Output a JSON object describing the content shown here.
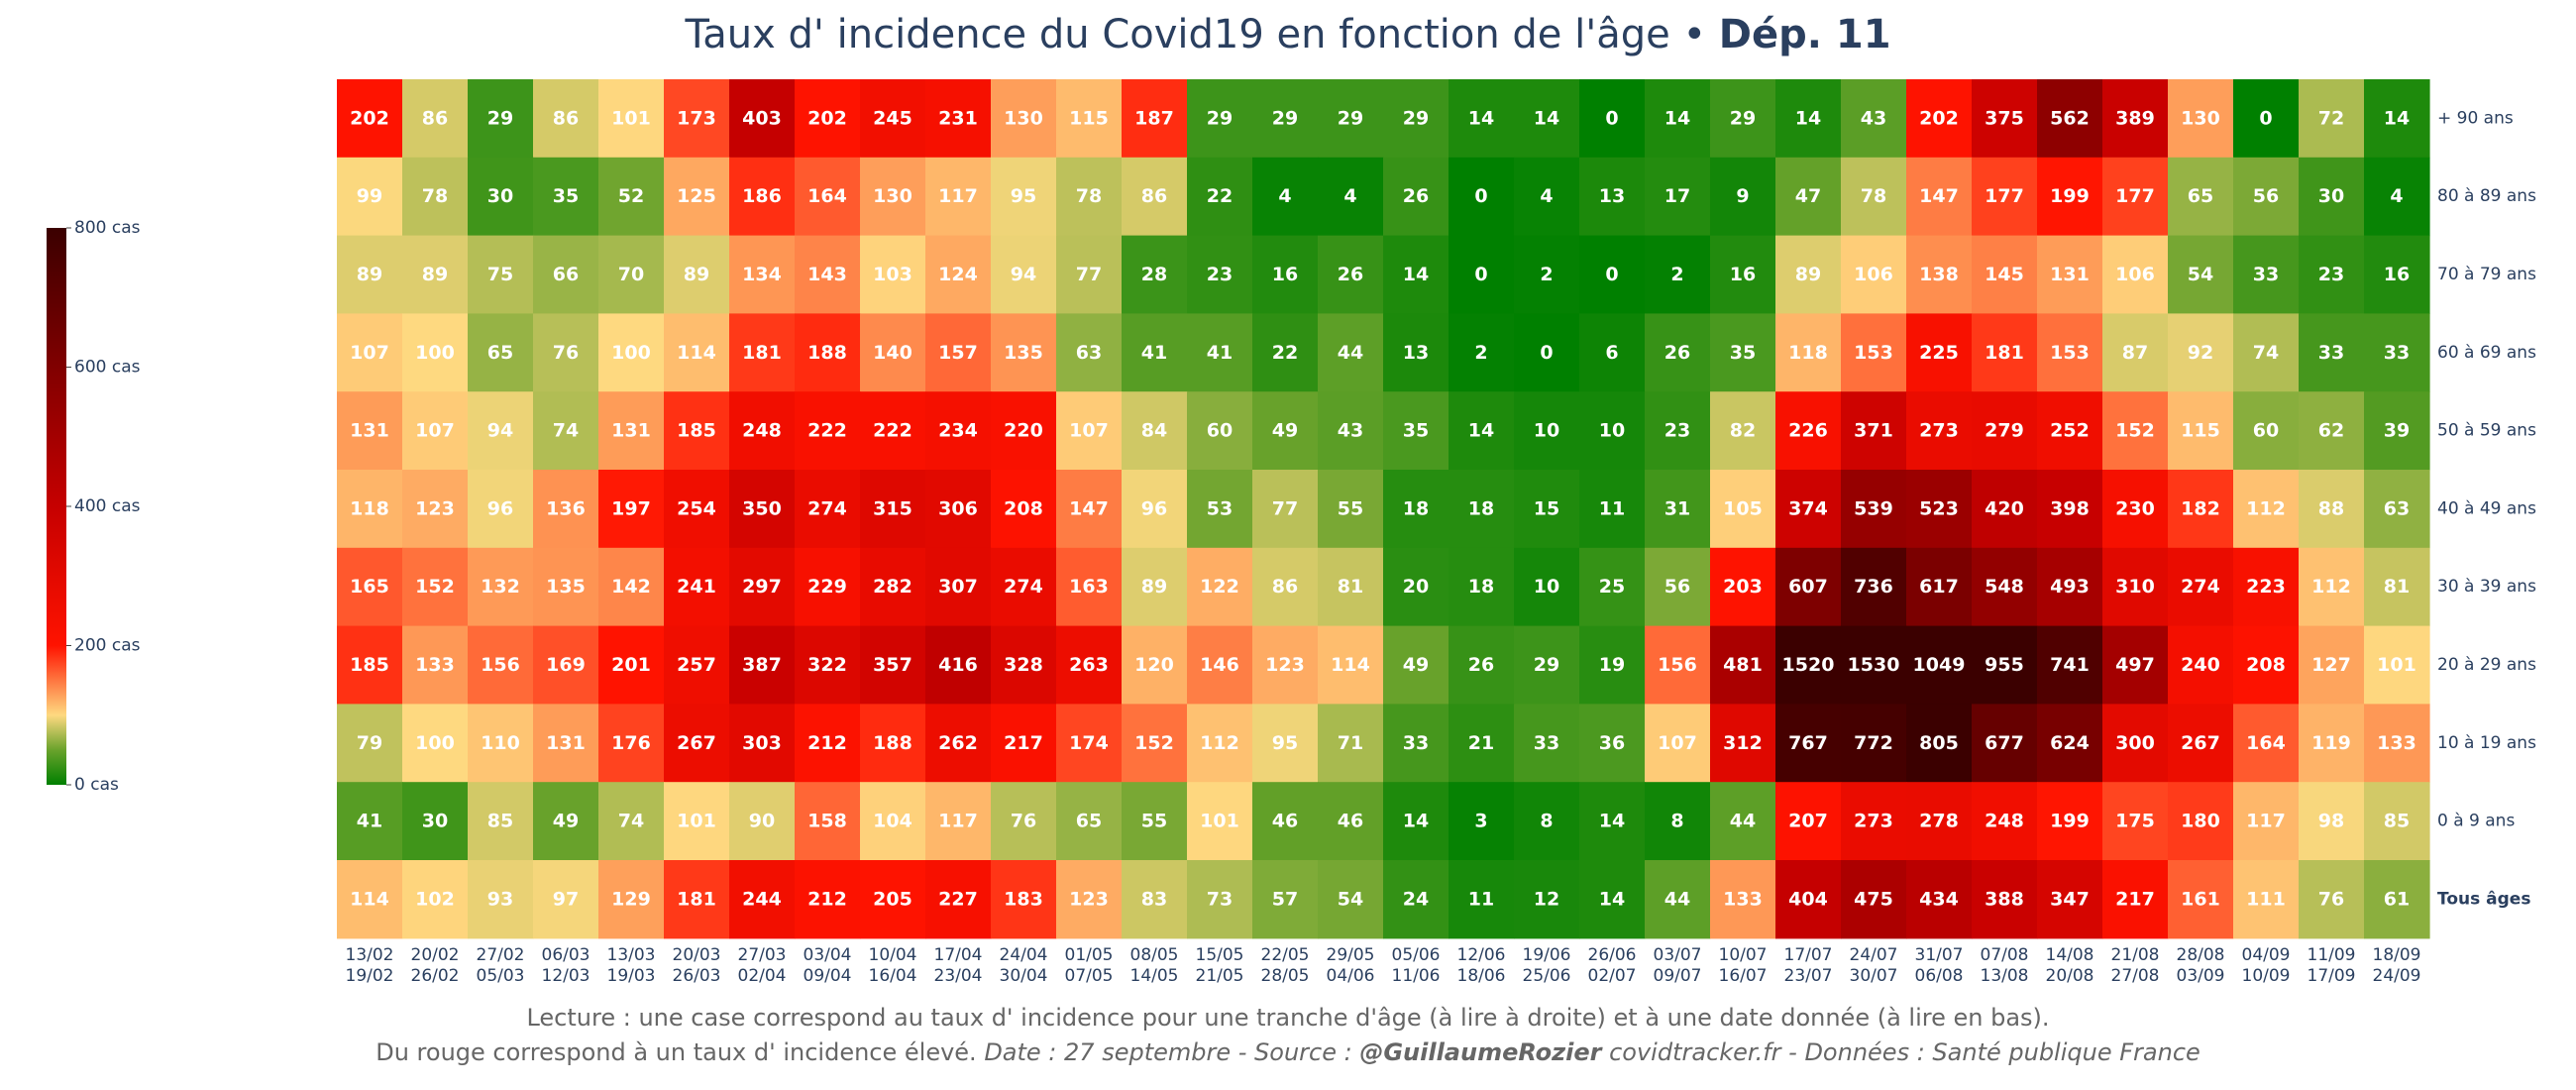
{
  "title": {
    "main": "Taux d' incidence du Covid19 en fonction de l'âge • ",
    "bold": "Dép. 11"
  },
  "footer": {
    "line1": "Lecture : une case correspond au taux d' incidence pour une tranche d'âge (à lire à droite) et à une date donnée (à lire en bas).",
    "line2_normal": "Du rouge correspond à un taux d' incidence élevé.  ",
    "line2_italic1": "Date : 27 septembre - Source : ",
    "line2_bold": "@GuillaumeRozier",
    "line2_italic2": " covidtracker.fr - Données : Santé publique France"
  },
  "chart_data": {
    "type": "heatmap",
    "title": "Taux d' incidence du Covid19 en fonction de l'âge • Dép. 11",
    "rows": [
      "+ 90 ans",
      "80 à 89 ans",
      "70 à 79 ans",
      "60 à 69 ans",
      "50 à 59 ans",
      "40 à 49 ans",
      "30 à 39 ans",
      "20 à 29 ans",
      "10 à 19 ans",
      "0 à 9 ans",
      "Tous âges"
    ],
    "bold_row": "Tous âges",
    "columns": [
      [
        "13/02",
        "19/02"
      ],
      [
        "20/02",
        "26/02"
      ],
      [
        "27/02",
        "05/03"
      ],
      [
        "06/03",
        "12/03"
      ],
      [
        "13/03",
        "19/03"
      ],
      [
        "20/03",
        "26/03"
      ],
      [
        "27/03",
        "02/04"
      ],
      [
        "03/04",
        "09/04"
      ],
      [
        "10/04",
        "16/04"
      ],
      [
        "17/04",
        "23/04"
      ],
      [
        "24/04",
        "30/04"
      ],
      [
        "01/05",
        "07/05"
      ],
      [
        "08/05",
        "14/05"
      ],
      [
        "15/05",
        "21/05"
      ],
      [
        "22/05",
        "28/05"
      ],
      [
        "29/05",
        "04/06"
      ],
      [
        "05/06",
        "11/06"
      ],
      [
        "12/06",
        "18/06"
      ],
      [
        "19/06",
        "25/06"
      ],
      [
        "26/06",
        "02/07"
      ],
      [
        "03/07",
        "09/07"
      ],
      [
        "10/07",
        "16/07"
      ],
      [
        "17/07",
        "23/07"
      ],
      [
        "24/07",
        "30/07"
      ],
      [
        "31/07",
        "06/08"
      ],
      [
        "07/08",
        "13/08"
      ],
      [
        "14/08",
        "20/08"
      ],
      [
        "21/08",
        "27/08"
      ],
      [
        "28/08",
        "03/09"
      ],
      [
        "04/09",
        "10/09"
      ],
      [
        "11/09",
        "17/09"
      ],
      [
        "18/09",
        "24/09"
      ]
    ],
    "values": [
      [
        202,
        86,
        29,
        86,
        101,
        173,
        403,
        202,
        245,
        231,
        130,
        115,
        187,
        29,
        29,
        29,
        29,
        14,
        14,
        0,
        14,
        29,
        14,
        43,
        202,
        375,
        562,
        389,
        130,
        0,
        72,
        14
      ],
      [
        99,
        78,
        30,
        35,
        52,
        125,
        186,
        164,
        130,
        117,
        95,
        78,
        86,
        22,
        4,
        4,
        26,
        0,
        4,
        13,
        17,
        9,
        47,
        78,
        147,
        177,
        199,
        177,
        65,
        56,
        30,
        4
      ],
      [
        89,
        89,
        75,
        66,
        70,
        89,
        134,
        143,
        103,
        124,
        94,
        77,
        28,
        23,
        16,
        26,
        14,
        0,
        2,
        0,
        2,
        16,
        89,
        106,
        138,
        145,
        131,
        106,
        54,
        33,
        23,
        16
      ],
      [
        107,
        100,
        65,
        76,
        100,
        114,
        181,
        188,
        140,
        157,
        135,
        63,
        41,
        41,
        22,
        44,
        13,
        2,
        0,
        6,
        26,
        35,
        118,
        153,
        225,
        181,
        153,
        87,
        92,
        74,
        33,
        33
      ],
      [
        131,
        107,
        94,
        74,
        131,
        185,
        248,
        222,
        222,
        234,
        220,
        107,
        84,
        60,
        49,
        43,
        35,
        14,
        10,
        10,
        23,
        82,
        226,
        371,
        273,
        279,
        252,
        152,
        115,
        60,
        62,
        39
      ],
      [
        118,
        123,
        96,
        136,
        197,
        254,
        350,
        274,
        315,
        306,
        208,
        147,
        96,
        53,
        77,
        55,
        18,
        18,
        15,
        11,
        31,
        105,
        374,
        539,
        523,
        420,
        398,
        230,
        182,
        112,
        88,
        63
      ],
      [
        165,
        152,
        132,
        135,
        142,
        241,
        297,
        229,
        282,
        307,
        274,
        163,
        89,
        122,
        86,
        81,
        20,
        18,
        10,
        25,
        56,
        203,
        607,
        736,
        617,
        548,
        493,
        310,
        274,
        223,
        112,
        81
      ],
      [
        185,
        133,
        156,
        169,
        201,
        257,
        387,
        322,
        357,
        416,
        328,
        263,
        120,
        146,
        123,
        114,
        49,
        26,
        29,
        19,
        156,
        481,
        1520,
        1530,
        1049,
        955,
        741,
        497,
        240,
        208,
        127,
        101
      ],
      [
        79,
        100,
        110,
        131,
        176,
        267,
        303,
        212,
        188,
        262,
        217,
        174,
        152,
        112,
        95,
        71,
        33,
        21,
        33,
        36,
        107,
        312,
        767,
        772,
        805,
        677,
        624,
        300,
        267,
        164,
        119,
        133
      ],
      [
        41,
        30,
        85,
        49,
        74,
        101,
        90,
        158,
        104,
        117,
        76,
        65,
        55,
        101,
        46,
        46,
        14,
        3,
        8,
        14,
        8,
        44,
        207,
        273,
        278,
        248,
        199,
        175,
        180,
        117,
        98,
        85
      ],
      [
        114,
        102,
        93,
        97,
        129,
        181,
        244,
        212,
        205,
        227,
        183,
        123,
        83,
        73,
        57,
        54,
        24,
        11,
        12,
        14,
        44,
        133,
        404,
        475,
        434,
        388,
        347,
        217,
        161,
        111,
        76,
        61
      ]
    ],
    "zmin": 0,
    "zmax": 800,
    "colorscale": [
      [
        0,
        "#008000"
      ],
      [
        0.0625,
        "#6aa32c"
      ],
      [
        0.125,
        "#fed980"
      ],
      [
        0.25,
        "#ff1300"
      ],
      [
        0.5,
        "#c60000"
      ],
      [
        1,
        "#3b0000"
      ]
    ],
    "colorbar": {
      "ticks": [
        0,
        200,
        400,
        600,
        800
      ],
      "tick_labels": [
        "0 cas",
        "200 cas",
        "400 cas",
        "600 cas",
        "800 cas"
      ],
      "position": "left"
    }
  }
}
